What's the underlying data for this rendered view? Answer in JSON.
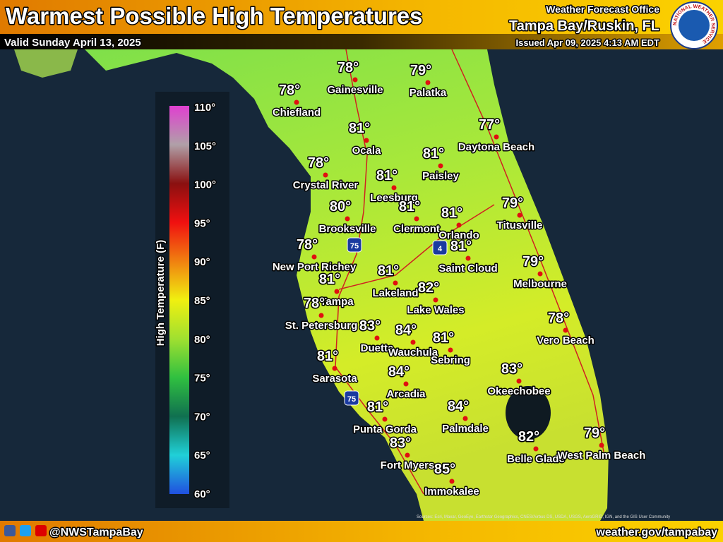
{
  "header": {
    "title": "Warmest Possible High Temperatures",
    "valid": "Valid Sunday April 13, 2025",
    "office_line": "Weather Forecast Office",
    "office": "Tampa Bay/Ruskin, FL",
    "issued": "Issued Apr 09, 2025 4:13 AM EDT",
    "logo_text": "NATIONAL WEATHER SERVICE"
  },
  "legend": {
    "title": "High Temperature (F)",
    "ticks": [
      "110°",
      "105°",
      "100°",
      "95°",
      "90°",
      "85°",
      "80°",
      "75°",
      "70°",
      "65°",
      "60°"
    ]
  },
  "cities": [
    {
      "name": "Gainesville",
      "temp": "78°"
    },
    {
      "name": "Palatka",
      "temp": "79°"
    },
    {
      "name": "Chiefland",
      "temp": "78°"
    },
    {
      "name": "Ocala",
      "temp": "81°"
    },
    {
      "name": "Daytona Beach",
      "temp": "77°"
    },
    {
      "name": "Paisley",
      "temp": "81°"
    },
    {
      "name": "Crystal River",
      "temp": "78°"
    },
    {
      "name": "Leesburg",
      "temp": "81°"
    },
    {
      "name": "Brooksville",
      "temp": "80°"
    },
    {
      "name": "Clermont",
      "temp": "81°"
    },
    {
      "name": "Orlando",
      "temp": "81°"
    },
    {
      "name": "Titusville",
      "temp": "79°"
    },
    {
      "name": "New Port Richey",
      "temp": "78°"
    },
    {
      "name": "Saint Cloud",
      "temp": "81°"
    },
    {
      "name": "Melbourne",
      "temp": "79°"
    },
    {
      "name": "Tampa",
      "temp": "81°"
    },
    {
      "name": "Lakeland",
      "temp": "81°"
    },
    {
      "name": "Lake Wales",
      "temp": "82°"
    },
    {
      "name": "St. Petersburg",
      "temp": "78°"
    },
    {
      "name": "Vero Beach",
      "temp": "78°"
    },
    {
      "name": "Duette",
      "temp": "83°"
    },
    {
      "name": "Wauchula",
      "temp": "84°"
    },
    {
      "name": "Sebring",
      "temp": "81°"
    },
    {
      "name": "Sarasota",
      "temp": "81°"
    },
    {
      "name": "Okeechobee",
      "temp": "83°"
    },
    {
      "name": "Arcadia",
      "temp": "84°"
    },
    {
      "name": "Punta Gorda",
      "temp": "81°"
    },
    {
      "name": "Palmdale",
      "temp": "84°"
    },
    {
      "name": "Fort Myers",
      "temp": "83°"
    },
    {
      "name": "Belle Glade",
      "temp": "82°"
    },
    {
      "name": "West Palm Beach",
      "temp": "79°"
    },
    {
      "name": "Immokalee",
      "temp": "85°"
    }
  ],
  "interstates": [
    "75",
    "4",
    "75"
  ],
  "attribution": "Sources: Esri, Maxar, GeoEye, Earthstar Geographics, CNES/Airbus DS, USDA, USGS, AeroGRID, IGN, and the GIS User Community",
  "footer": {
    "handle": "@NWSTampaBay",
    "url": "weather.gov/tampabay"
  }
}
